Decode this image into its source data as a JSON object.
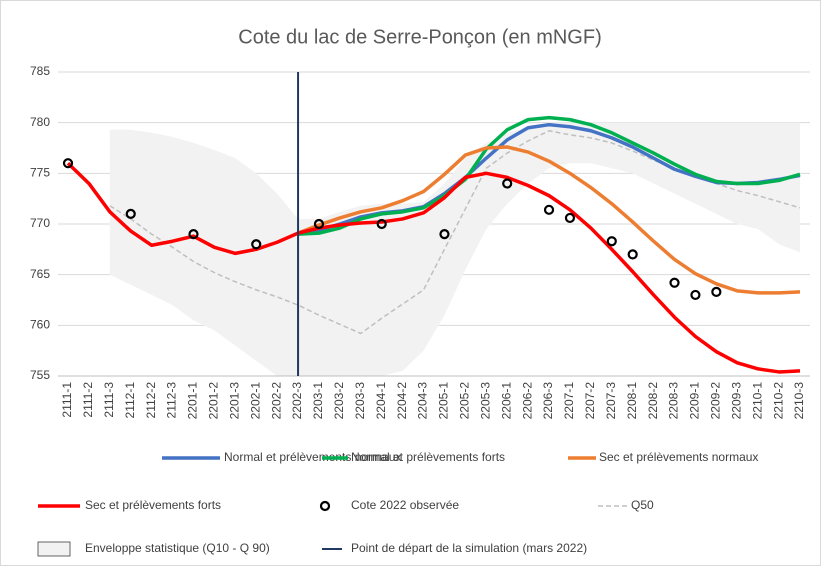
{
  "chart_data": {
    "type": "line",
    "title": "Cote du lac de Serre-Ponçon (en mNGF)",
    "categories": [
      "2111-1",
      "2111-2",
      "2111-3",
      "2112-1",
      "2112-2",
      "2112-3",
      "2201-1",
      "2201-2",
      "2201-3",
      "2202-1",
      "2202-2",
      "2202-3",
      "2203-1",
      "2203-2",
      "2203-3",
      "2204-1",
      "2204-2",
      "2204-3",
      "2205-1",
      "2205-2",
      "2205-3",
      "2206-1",
      "2206-2",
      "2206-3",
      "2207-1",
      "2207-2",
      "2207-3",
      "2208-1",
      "2208-2",
      "2208-3",
      "2209-1",
      "2209-2",
      "2209-3",
      "2210-1",
      "2210-2",
      "2210-3"
    ],
    "ylim": [
      755,
      785
    ],
    "yticks": [
      755,
      760,
      765,
      770,
      775,
      780,
      785
    ],
    "grid": true,
    "series": [
      {
        "name": "Normal et prélèvements normaux",
        "color": "#4472c4",
        "values": [
          null,
          null,
          null,
          null,
          null,
          null,
          null,
          null,
          null,
          null,
          null,
          769,
          769.4,
          770,
          770.7,
          771.1,
          771.3,
          771.7,
          773,
          774.6,
          776.5,
          778.3,
          779.5,
          779.8,
          779.6,
          779.2,
          778.5,
          777.6,
          776.5,
          775.4,
          774.7,
          774.1,
          774,
          774.1,
          774.4,
          774.8
        ]
      },
      {
        "name": "Normal et prélèvements forts",
        "color": "#00b050",
        "values": [
          null,
          null,
          null,
          null,
          null,
          null,
          null,
          null,
          null,
          null,
          null,
          769,
          769.1,
          769.6,
          770.5,
          771,
          771.2,
          771.6,
          772.8,
          774.4,
          777.4,
          779.3,
          780.3,
          780.5,
          780.3,
          779.8,
          779,
          778,
          777,
          775.9,
          774.9,
          774.2,
          774,
          774,
          774.3,
          774.9
        ]
      },
      {
        "name": "Sec et prélèvements normaux",
        "color": "#ed7d31",
        "values": [
          null,
          null,
          null,
          null,
          null,
          null,
          null,
          null,
          null,
          null,
          null,
          769.1,
          769.9,
          770.6,
          771.2,
          771.6,
          772.3,
          773.2,
          774.9,
          776.8,
          777.5,
          777.6,
          777.1,
          776.2,
          775,
          773.6,
          772,
          770.2,
          768.3,
          766.5,
          765.1,
          764.1,
          763.4,
          763.2,
          763.2,
          763.3
        ]
      },
      {
        "name": "Sec et prélèvements forts",
        "color": "#ff0000",
        "values": [
          776,
          774,
          771.2,
          769.3,
          767.9,
          768.3,
          768.8,
          767.7,
          767.1,
          767.5,
          768.2,
          769.1,
          769.6,
          769.9,
          770.1,
          770.2,
          770.5,
          771.1,
          772.6,
          774.6,
          775,
          774.6,
          773.8,
          772.8,
          771.4,
          769.6,
          767.5,
          765.3,
          763,
          760.8,
          758.9,
          757.4,
          756.3,
          755.7,
          755.4,
          755.5
        ]
      },
      {
        "name": "Q50",
        "color": "#bfbfbf",
        "dashed": true,
        "values": [
          null,
          null,
          771.8,
          770.5,
          769,
          767.7,
          766.3,
          765.2,
          764.3,
          763.5,
          762.8,
          762,
          761,
          760.1,
          759.2,
          760.7,
          762.1,
          763.5,
          767.5,
          771.5,
          775.5,
          777,
          778.2,
          779.2,
          778.8,
          778.5,
          778,
          777.2,
          776.3,
          775.5,
          774.6,
          774,
          773.3,
          772.8,
          772.2,
          771.6
        ]
      }
    ],
    "observed": {
      "name": "Cote 2022 observée",
      "color": "#000000",
      "values": [
        776,
        null,
        null,
        771,
        null,
        null,
        769,
        null,
        null,
        768,
        null,
        null,
        770,
        null,
        null,
        770,
        null,
        null,
        769,
        null,
        null,
        774,
        null,
        771.4,
        770.6,
        null,
        768.3,
        767,
        null,
        764.2,
        763,
        763.3,
        null,
        null,
        null,
        null
      ]
    },
    "envelope": {
      "name": "Enveloppe statistique (Q10 - Q 90)",
      "color": "#f2f2f2",
      "upper": [
        null,
        null,
        779.3,
        779.3,
        779,
        778.6,
        778,
        777.3,
        776.5,
        775,
        773,
        770.5,
        770.5,
        771.2,
        771.8,
        772,
        772,
        772.2,
        774,
        776.5,
        778,
        779,
        779.5,
        780,
        780,
        780,
        780,
        780,
        780,
        780,
        780,
        780,
        780,
        780,
        780,
        780
      ],
      "lower": [
        null,
        null,
        765,
        764,
        763,
        762,
        760.5,
        759.5,
        758,
        756.5,
        755,
        755,
        755,
        755,
        755,
        755,
        755.5,
        757.5,
        761,
        765.5,
        769.5,
        772,
        774,
        775.5,
        776,
        776,
        775.5,
        775,
        774,
        773,
        772,
        771,
        770,
        769.5,
        768,
        767.2
      ]
    },
    "start_marker": {
      "name": "Point de départ de la simulation (mars 2022)",
      "color": "#1f3864",
      "x": "2202-3"
    }
  }
}
